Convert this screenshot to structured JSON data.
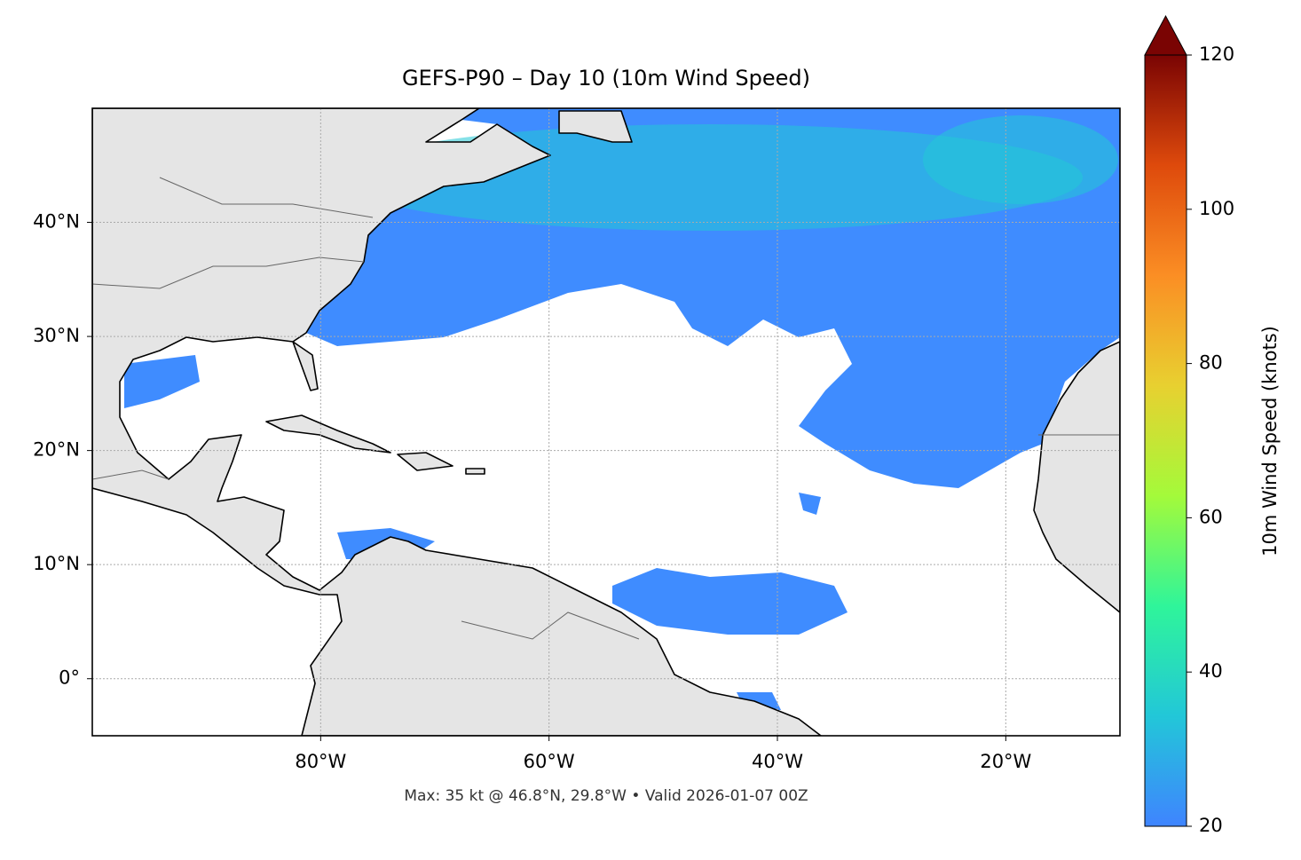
{
  "chart_data": {
    "type": "map",
    "title": "GEFS-P90 – Day 10 (10m Wind Speed)",
    "xlim": [
      -100,
      -10
    ],
    "ylim": [
      -5,
      50
    ],
    "xticks": [
      {
        "value": -80,
        "label": "80°W"
      },
      {
        "value": -60,
        "label": "60°W"
      },
      {
        "value": -40,
        "label": "40°W"
      },
      {
        "value": -20,
        "label": "20°W"
      }
    ],
    "yticks": [
      {
        "value": 0,
        "label": "0°"
      },
      {
        "value": 10,
        "label": "10°N"
      },
      {
        "value": 20,
        "label": "20°N"
      },
      {
        "value": 30,
        "label": "30°N"
      },
      {
        "value": 40,
        "label": "40°N"
      }
    ],
    "grid": true,
    "colorbar": {
      "label": "10m Wind Speed (knots)",
      "lim": [
        20,
        120
      ],
      "ticks": [
        20,
        40,
        60,
        80,
        100,
        120
      ],
      "colors": [
        "#3f84ff",
        "#22c7d8",
        "#2ff59a",
        "#a4fa3a",
        "#e8d030",
        "#fb8e24",
        "#de4a0c",
        "#7a0403"
      ]
    },
    "footer": "Max: 35 kt @ 46.8°N, 29.8°W • Valid 2026-01-07 00Z"
  }
}
